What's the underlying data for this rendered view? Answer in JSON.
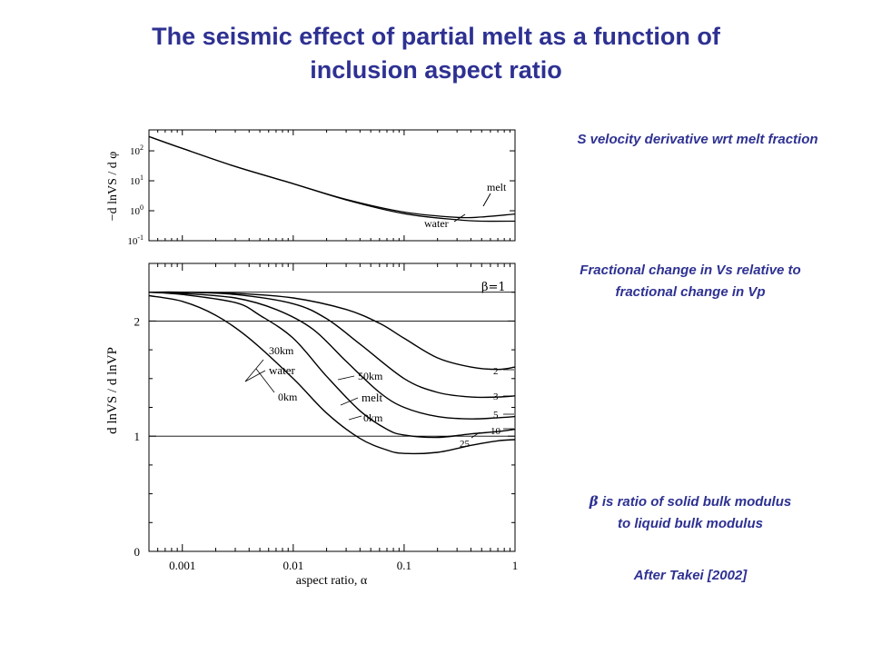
{
  "title": {
    "line1": "The seismic effect of partial melt as a function of",
    "line2": "inclusion aspect ratio"
  },
  "notes": {
    "top": "S velocity derivative wrt melt fraction",
    "middle_line1": "Fractional change in Vs relative to",
    "middle_line2": "fractional change in Vp",
    "beta_symbol": "β",
    "beta_line1": " is ratio of solid bulk modulus",
    "beta_line2": "to liquid bulk modulus",
    "credit": "After Takei [2002]"
  },
  "chart_data": [
    {
      "type": "line",
      "panel": "top",
      "ylabel": "−d lnVS / d φ",
      "yscale": "log",
      "xscale": "log",
      "xlim": [
        0.0005,
        1
      ],
      "ylim": [
        0.1,
        500
      ],
      "y_ticks": [
        "10-1",
        "100",
        "101",
        "102"
      ],
      "series": [
        {
          "name": "melt",
          "x": [
            0.0005,
            0.001,
            0.003,
            0.01,
            0.03,
            0.1,
            0.3,
            0.5,
            1
          ],
          "y": [
            300,
            120,
            30,
            8,
            2.4,
            0.9,
            0.6,
            0.62,
            0.78
          ]
        },
        {
          "name": "water",
          "x": [
            0.0005,
            0.001,
            0.003,
            0.01,
            0.03,
            0.1,
            0.3,
            0.5,
            1
          ],
          "y": [
            300,
            120,
            30,
            8,
            2.3,
            0.8,
            0.5,
            0.45,
            0.45
          ]
        }
      ]
    },
    {
      "type": "line",
      "panel": "bottom",
      "xlabel": "aspect ratio,  α",
      "ylabel": "d lnVS / d lnVP",
      "xscale": "log",
      "xlim": [
        0.0005,
        1
      ],
      "ylim": [
        0,
        2.5
      ],
      "x_ticks": [
        "0.001",
        "0.01",
        "0.1",
        "1"
      ],
      "y_ticks": [
        "0",
        "1",
        "2"
      ],
      "hlines": [
        1,
        2,
        2.25
      ],
      "series": [
        {
          "name": "2",
          "x": [
            0.0005,
            0.001,
            0.003,
            0.01,
            0.03,
            0.06,
            0.1,
            0.2,
            0.4,
            0.7,
            1
          ],
          "y": [
            2.25,
            2.25,
            2.24,
            2.2,
            2.1,
            1.98,
            1.85,
            1.68,
            1.6,
            1.58,
            1.6
          ]
        },
        {
          "name": "3",
          "x": [
            0.0005,
            0.001,
            0.003,
            0.01,
            0.02,
            0.04,
            0.1,
            0.2,
            0.4,
            0.7,
            1
          ],
          "y": [
            2.25,
            2.25,
            2.23,
            2.15,
            2.02,
            1.8,
            1.5,
            1.38,
            1.34,
            1.34,
            1.35
          ]
        },
        {
          "name": "5",
          "x": [
            0.0005,
            0.001,
            0.003,
            0.007,
            0.015,
            0.03,
            0.06,
            0.1,
            0.2,
            0.4,
            0.7,
            1
          ],
          "y": [
            2.25,
            2.24,
            2.2,
            2.1,
            1.93,
            1.65,
            1.38,
            1.25,
            1.17,
            1.15,
            1.16,
            1.17
          ]
        },
        {
          "name": "10",
          "x": [
            0.0005,
            0.001,
            0.003,
            0.005,
            0.01,
            0.02,
            0.04,
            0.07,
            0.1,
            0.2,
            0.4,
            0.7,
            1
          ],
          "y": [
            2.25,
            2.23,
            2.16,
            2.05,
            1.85,
            1.52,
            1.22,
            1.06,
            1.01,
            0.99,
            1.02,
            1.04,
            1.06
          ]
        },
        {
          "name": "25",
          "x": [
            0.0005,
            0.001,
            0.002,
            0.004,
            0.01,
            0.02,
            0.04,
            0.07,
            0.1,
            0.2,
            0.4,
            0.7,
            1
          ],
          "y": [
            2.22,
            2.17,
            2.05,
            1.85,
            1.5,
            1.2,
            0.98,
            0.88,
            0.85,
            0.86,
            0.92,
            0.96,
            0.97
          ]
        },
        {
          "name": "β=1",
          "x": [
            0.0005,
            1
          ],
          "y": [
            2.25,
            2.25
          ]
        }
      ],
      "annotations": [
        "β=1",
        "30km",
        "water",
        "0km",
        "50km",
        "melt",
        "0km",
        "2",
        "3",
        "5",
        "10",
        "25"
      ]
    }
  ]
}
